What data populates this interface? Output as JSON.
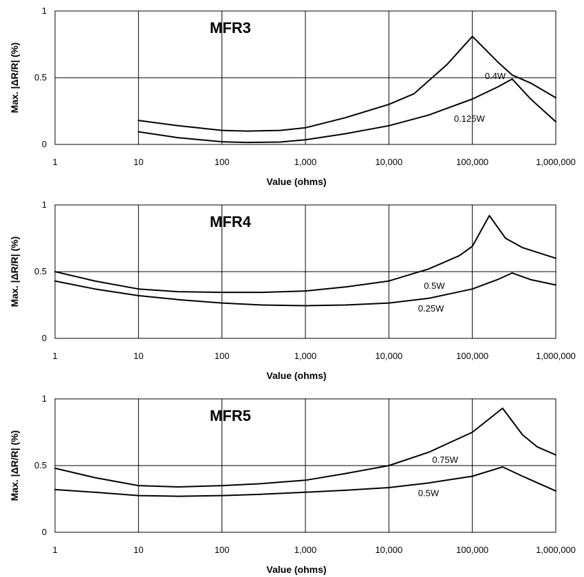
{
  "chart_data": [
    {
      "type": "line",
      "title": "MFR3",
      "xlabel": "Value (ohms)",
      "ylabel": "Max. |ΔR/R| (%)",
      "xscale": "log",
      "xlim": [
        1,
        1000000
      ],
      "ylim": [
        0,
        1
      ],
      "x_ticks": [
        "1",
        "10",
        "100",
        "1,000",
        "10,000",
        "100,000",
        "1,000,000"
      ],
      "y_ticks": [
        "0",
        "0.5",
        "1"
      ],
      "grid": true,
      "series": [
        {
          "name": "0.4W",
          "x": [
            10,
            30,
            100,
            200,
            500,
            1000,
            3000,
            10000,
            20000,
            50000,
            100000,
            200000,
            300000,
            500000,
            1000000
          ],
          "y": [
            0.18,
            0.14,
            0.105,
            0.1,
            0.105,
            0.125,
            0.2,
            0.3,
            0.38,
            0.6,
            0.81,
            0.62,
            0.52,
            0.46,
            0.35
          ]
        },
        {
          "name": "0.125W",
          "x": [
            10,
            30,
            100,
            200,
            500,
            1000,
            3000,
            10000,
            30000,
            100000,
            200000,
            300000,
            500000,
            1000000
          ],
          "y": [
            0.095,
            0.05,
            0.02,
            0.015,
            0.018,
            0.035,
            0.08,
            0.14,
            0.22,
            0.34,
            0.43,
            0.49,
            0.34,
            0.17
          ]
        }
      ]
    },
    {
      "type": "line",
      "title": "MFR4",
      "xlabel": "Value (ohms)",
      "ylabel": "Max. |ΔR/R| (%)",
      "xscale": "log",
      "xlim": [
        1,
        1000000
      ],
      "ylim": [
        0,
        1
      ],
      "x_ticks": [
        "1",
        "10",
        "100",
        "1,000",
        "10,000",
        "100,000",
        "1,000,000"
      ],
      "y_ticks": [
        "0",
        "0.5",
        "1"
      ],
      "grid": true,
      "series": [
        {
          "name": "0.5W",
          "x": [
            1,
            3,
            10,
            30,
            100,
            300,
            1000,
            3000,
            10000,
            30000,
            70000,
            100000,
            160000,
            250000,
            400000,
            1000000
          ],
          "y": [
            0.5,
            0.43,
            0.37,
            0.35,
            0.345,
            0.345,
            0.355,
            0.385,
            0.43,
            0.52,
            0.62,
            0.69,
            0.92,
            0.75,
            0.68,
            0.6
          ]
        },
        {
          "name": "0.25W",
          "x": [
            1,
            3,
            10,
            30,
            100,
            300,
            1000,
            3000,
            10000,
            30000,
            100000,
            200000,
            300000,
            500000,
            1000000
          ],
          "y": [
            0.43,
            0.37,
            0.32,
            0.29,
            0.265,
            0.25,
            0.245,
            0.25,
            0.265,
            0.3,
            0.37,
            0.44,
            0.49,
            0.44,
            0.4
          ]
        }
      ]
    },
    {
      "type": "line",
      "title": "MFR5",
      "xlabel": "Value (ohms)",
      "ylabel": "Max. |ΔR/R| (%)",
      "xscale": "log",
      "xlim": [
        1,
        1000000
      ],
      "ylim": [
        0,
        1
      ],
      "x_ticks": [
        "1",
        "10",
        "100",
        "1,000",
        "10,000",
        "100,000",
        "1,000,000"
      ],
      "y_ticks": [
        "0",
        "0.5",
        "1"
      ],
      "grid": true,
      "series": [
        {
          "name": "0.75W",
          "x": [
            1,
            3,
            10,
            30,
            100,
            300,
            1000,
            3000,
            10000,
            30000,
            100000,
            230000,
            400000,
            600000,
            1000000
          ],
          "y": [
            0.48,
            0.41,
            0.35,
            0.34,
            0.35,
            0.365,
            0.39,
            0.44,
            0.5,
            0.6,
            0.75,
            0.93,
            0.73,
            0.64,
            0.58
          ]
        },
        {
          "name": "0.5W",
          "x": [
            1,
            3,
            10,
            30,
            100,
            300,
            1000,
            3000,
            10000,
            30000,
            100000,
            230000,
            400000,
            1000000
          ],
          "y": [
            0.32,
            0.3,
            0.275,
            0.27,
            0.275,
            0.285,
            0.3,
            0.315,
            0.335,
            0.37,
            0.42,
            0.49,
            0.42,
            0.31
          ]
        }
      ]
    }
  ]
}
